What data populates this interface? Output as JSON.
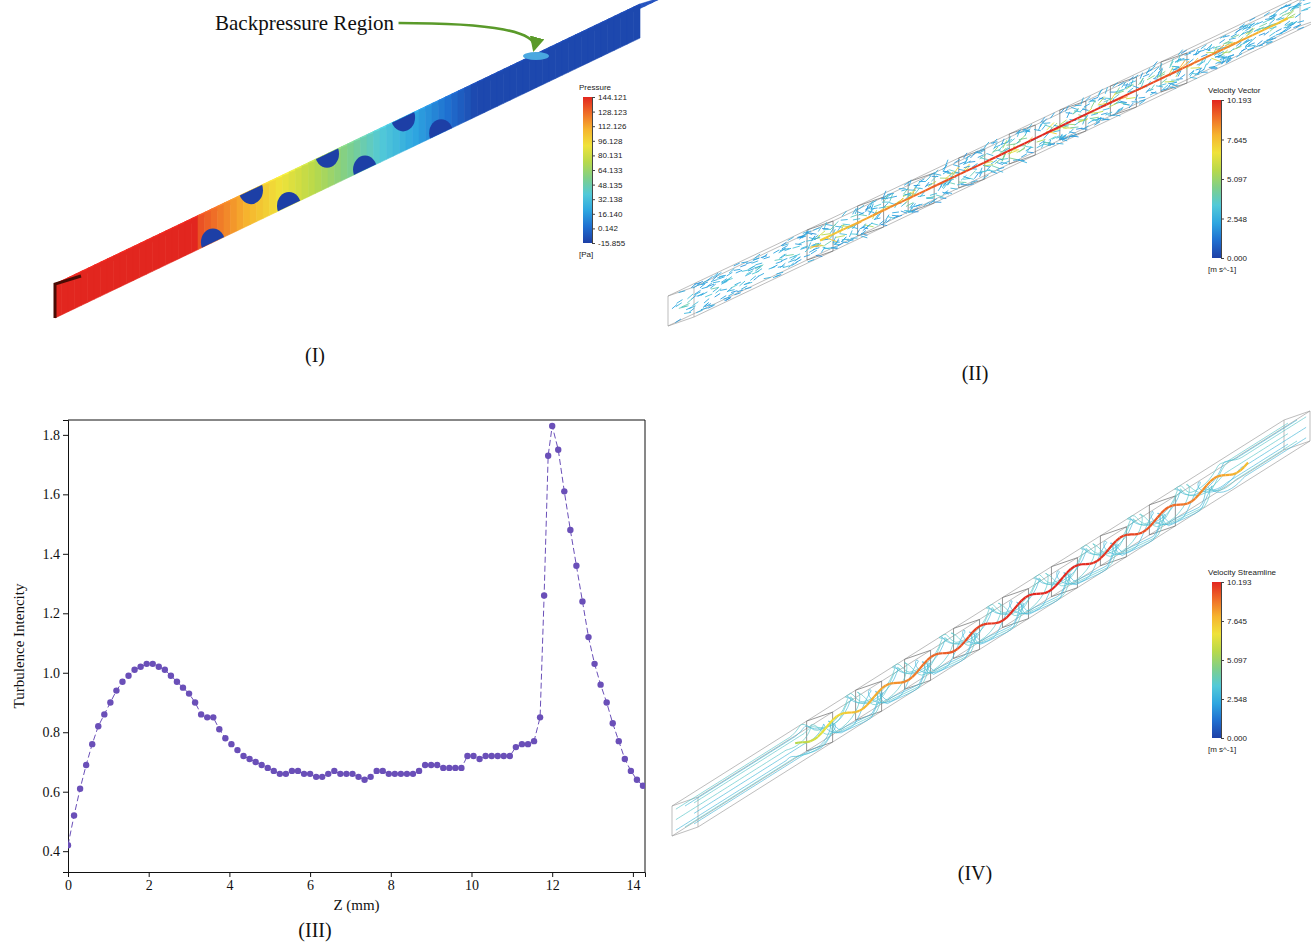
{
  "chart_data": [
    {
      "type": "contour3d",
      "panel_label": "(I)",
      "annotation": "Backpressure Region",
      "colorbar": {
        "title": "Pressure",
        "unit": "[Pa]",
        "range": [
          -15.855,
          144.121
        ],
        "ticks": [
          144.121,
          128.123,
          112.126,
          96.128,
          80.131,
          64.133,
          48.135,
          32.138,
          {
            "value": 16.14,
            "label": "16.140"
          },
          0.142,
          -15.855
        ]
      }
    },
    {
      "type": "vector3d",
      "panel_label": "(II)",
      "colorbar": {
        "title": "Velocity Vector",
        "unit": "[m s^-1]",
        "range": [
          0,
          10.193
        ],
        "ticks": [
          10.193,
          7.645,
          5.097,
          2.548,
          {
            "value": 0,
            "label": "0.000"
          }
        ]
      }
    },
    {
      "type": "line",
      "panel_label": "(III)",
      "x_label": "Z (mm)",
      "y_label": "Turbulence Intencity",
      "color": "#6a4fb8",
      "marker": "circle",
      "line_style": "dashed",
      "xlim": [
        0,
        14.3
      ],
      "ylim": [
        0.33,
        1.85
      ],
      "xticks": [
        0,
        2,
        4,
        6,
        8,
        10,
        12,
        14
      ],
      "yticks": [
        0.4,
        0.6,
        0.8,
        {
          "value": 1,
          "label": "1.0"
        },
        1.2,
        1.4,
        1.6,
        1.8
      ],
      "x": [
        0,
        0.15,
        0.3,
        0.45,
        0.6,
        0.75,
        0.9,
        1.05,
        1.2,
        1.35,
        1.5,
        1.65,
        1.8,
        1.95,
        2.1,
        2.25,
        2.4,
        2.55,
        2.7,
        2.85,
        3,
        3.15,
        3.3,
        3.45,
        3.6,
        3.75,
        3.9,
        4.05,
        4.2,
        4.35,
        4.5,
        4.65,
        4.8,
        4.95,
        5.1,
        5.25,
        5.4,
        5.55,
        5.7,
        5.85,
        6,
        6.15,
        6.3,
        6.45,
        6.6,
        6.75,
        6.9,
        7.05,
        7.2,
        7.35,
        7.5,
        7.65,
        7.8,
        7.95,
        8.1,
        8.25,
        8.4,
        8.55,
        8.7,
        8.85,
        9,
        9.15,
        9.3,
        9.45,
        9.6,
        9.75,
        9.9,
        10.05,
        10.2,
        10.35,
        10.5,
        10.65,
        10.8,
        10.95,
        11.1,
        11.25,
        11.4,
        11.55,
        11.7,
        11.8,
        11.9,
        12,
        12.15,
        12.3,
        12.45,
        12.6,
        12.75,
        12.9,
        13.05,
        13.2,
        13.35,
        13.5,
        13.65,
        13.8,
        13.95,
        14.1,
        14.25
      ],
      "values": [
        0.42,
        0.52,
        0.61,
        0.69,
        0.76,
        0.82,
        0.86,
        0.9,
        0.94,
        0.97,
        0.99,
        1.01,
        1.02,
        1.03,
        1.03,
        1.02,
        1.01,
        0.99,
        0.97,
        0.95,
        0.93,
        0.9,
        0.86,
        0.85,
        0.85,
        0.81,
        0.78,
        0.76,
        0.74,
        0.72,
        0.71,
        0.7,
        0.69,
        0.68,
        0.67,
        0.66,
        0.66,
        0.67,
        0.67,
        0.66,
        0.66,
        0.65,
        0.65,
        0.66,
        0.67,
        0.66,
        0.66,
        0.66,
        0.65,
        0.64,
        0.65,
        0.67,
        0.67,
        0.66,
        0.66,
        0.66,
        0.66,
        0.66,
        0.67,
        0.69,
        0.69,
        0.69,
        0.68,
        0.68,
        0.68,
        0.68,
        0.72,
        0.72,
        0.71,
        0.72,
        0.72,
        0.72,
        0.72,
        0.72,
        0.75,
        0.76,
        0.76,
        0.77,
        0.85,
        1.26,
        1.73,
        1.83,
        1.75,
        1.61,
        1.48,
        1.36,
        1.24,
        1.12,
        1.03,
        0.96,
        0.9,
        0.83,
        0.77,
        0.71,
        0.67,
        0.64,
        0.62
      ]
    },
    {
      "type": "streamline3d",
      "panel_label": "(IV)",
      "colorbar": {
        "title": "Velocity Streamline",
        "unit": "[m s^-1]",
        "range": [
          0,
          10.193
        ],
        "ticks": [
          10.193,
          7.645,
          5.097,
          2.548,
          {
            "value": 0,
            "label": "0.000"
          }
        ]
      }
    }
  ]
}
